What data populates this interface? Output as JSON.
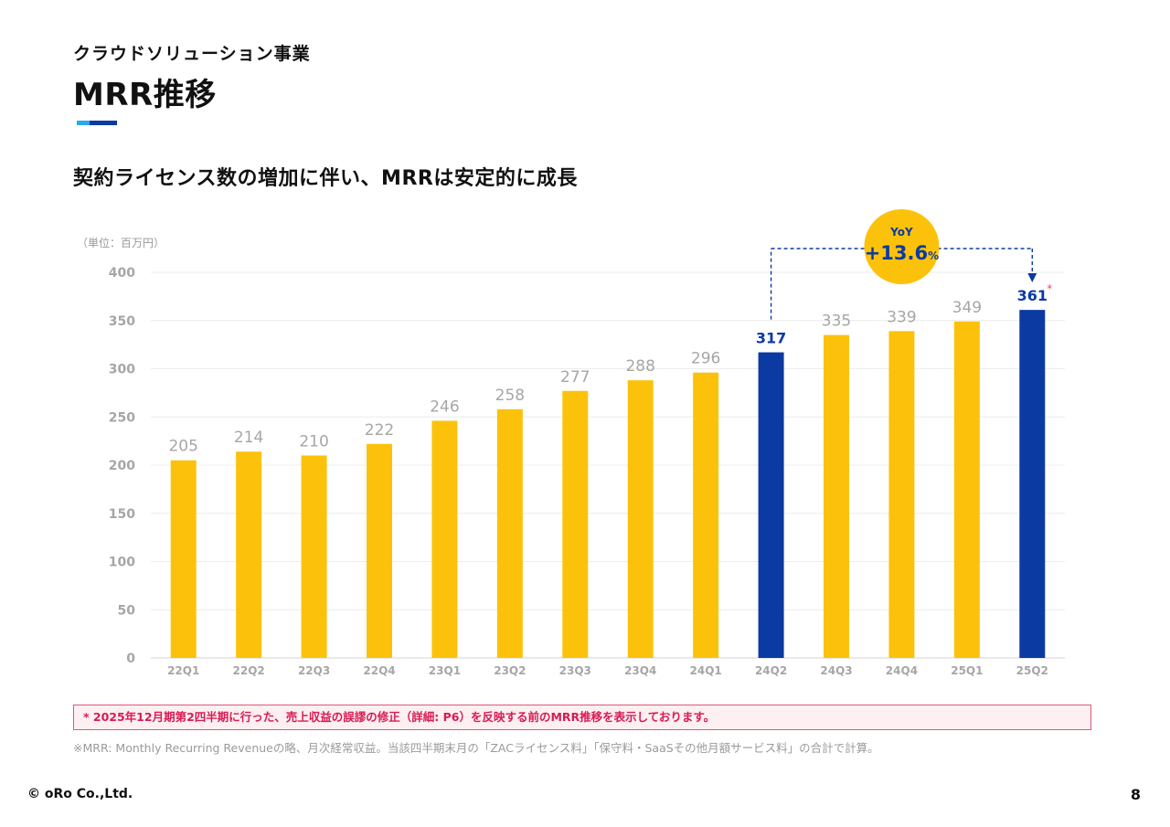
{
  "header": {
    "section": "クラウドソリューション事業",
    "title": "MRR推移",
    "headline": "契約ライセンス数の増加に伴い、MRRは安定的に成長"
  },
  "colors": {
    "bar_default": "#fcc20b",
    "bar_highlight": "#0b3aa3",
    "title_accent_light": "#29a8ea",
    "title_accent_dark": "#0b3aa3",
    "yoy_badge": "#fcc20b",
    "note_red": "#d81b52"
  },
  "chart_data": {
    "type": "bar",
    "unit_label": "（単位：百万円）",
    "categories": [
      "22Q1",
      "22Q2",
      "22Q3",
      "22Q4",
      "23Q1",
      "23Q2",
      "23Q3",
      "23Q4",
      "24Q1",
      "24Q2",
      "24Q3",
      "24Q4",
      "25Q1",
      "25Q2"
    ],
    "values": [
      205,
      214,
      210,
      222,
      246,
      258,
      277,
      288,
      296,
      317,
      335,
      339,
      349,
      361
    ],
    "data_labels": [
      "205",
      "214",
      "210",
      "222",
      "246",
      "258",
      "277",
      "288",
      "296",
      "317",
      "335",
      "339",
      "349",
      "361"
    ],
    "highlighted": [
      "24Q2",
      "25Q2"
    ],
    "asterisk_on": "25Q2",
    "asterisk_mark": "*",
    "ylim": [
      0,
      400
    ],
    "yticks": [
      0,
      50,
      100,
      150,
      200,
      250,
      300,
      350,
      400
    ],
    "grid": true,
    "annotation": {
      "from": "24Q2",
      "to": "25Q2",
      "label_top": "YoY",
      "label_value": "+13.6",
      "label_unit": "%"
    }
  },
  "footnotes": {
    "correction": "* 2025年12月期第2四半期に行った、売上収益の誤謬の修正（詳細: P6）を反映する前のMRR推移を表示しております。",
    "definition": "※MRR: Monthly Recurring Revenueの略、月次経常収益。当該四半期末月の「ZACライセンス料」「保守料・SaaSその他月額サービス料」の合計で計算。"
  },
  "footer": {
    "copyright": "© oRo Co.,Ltd.",
    "page_number": "8"
  }
}
